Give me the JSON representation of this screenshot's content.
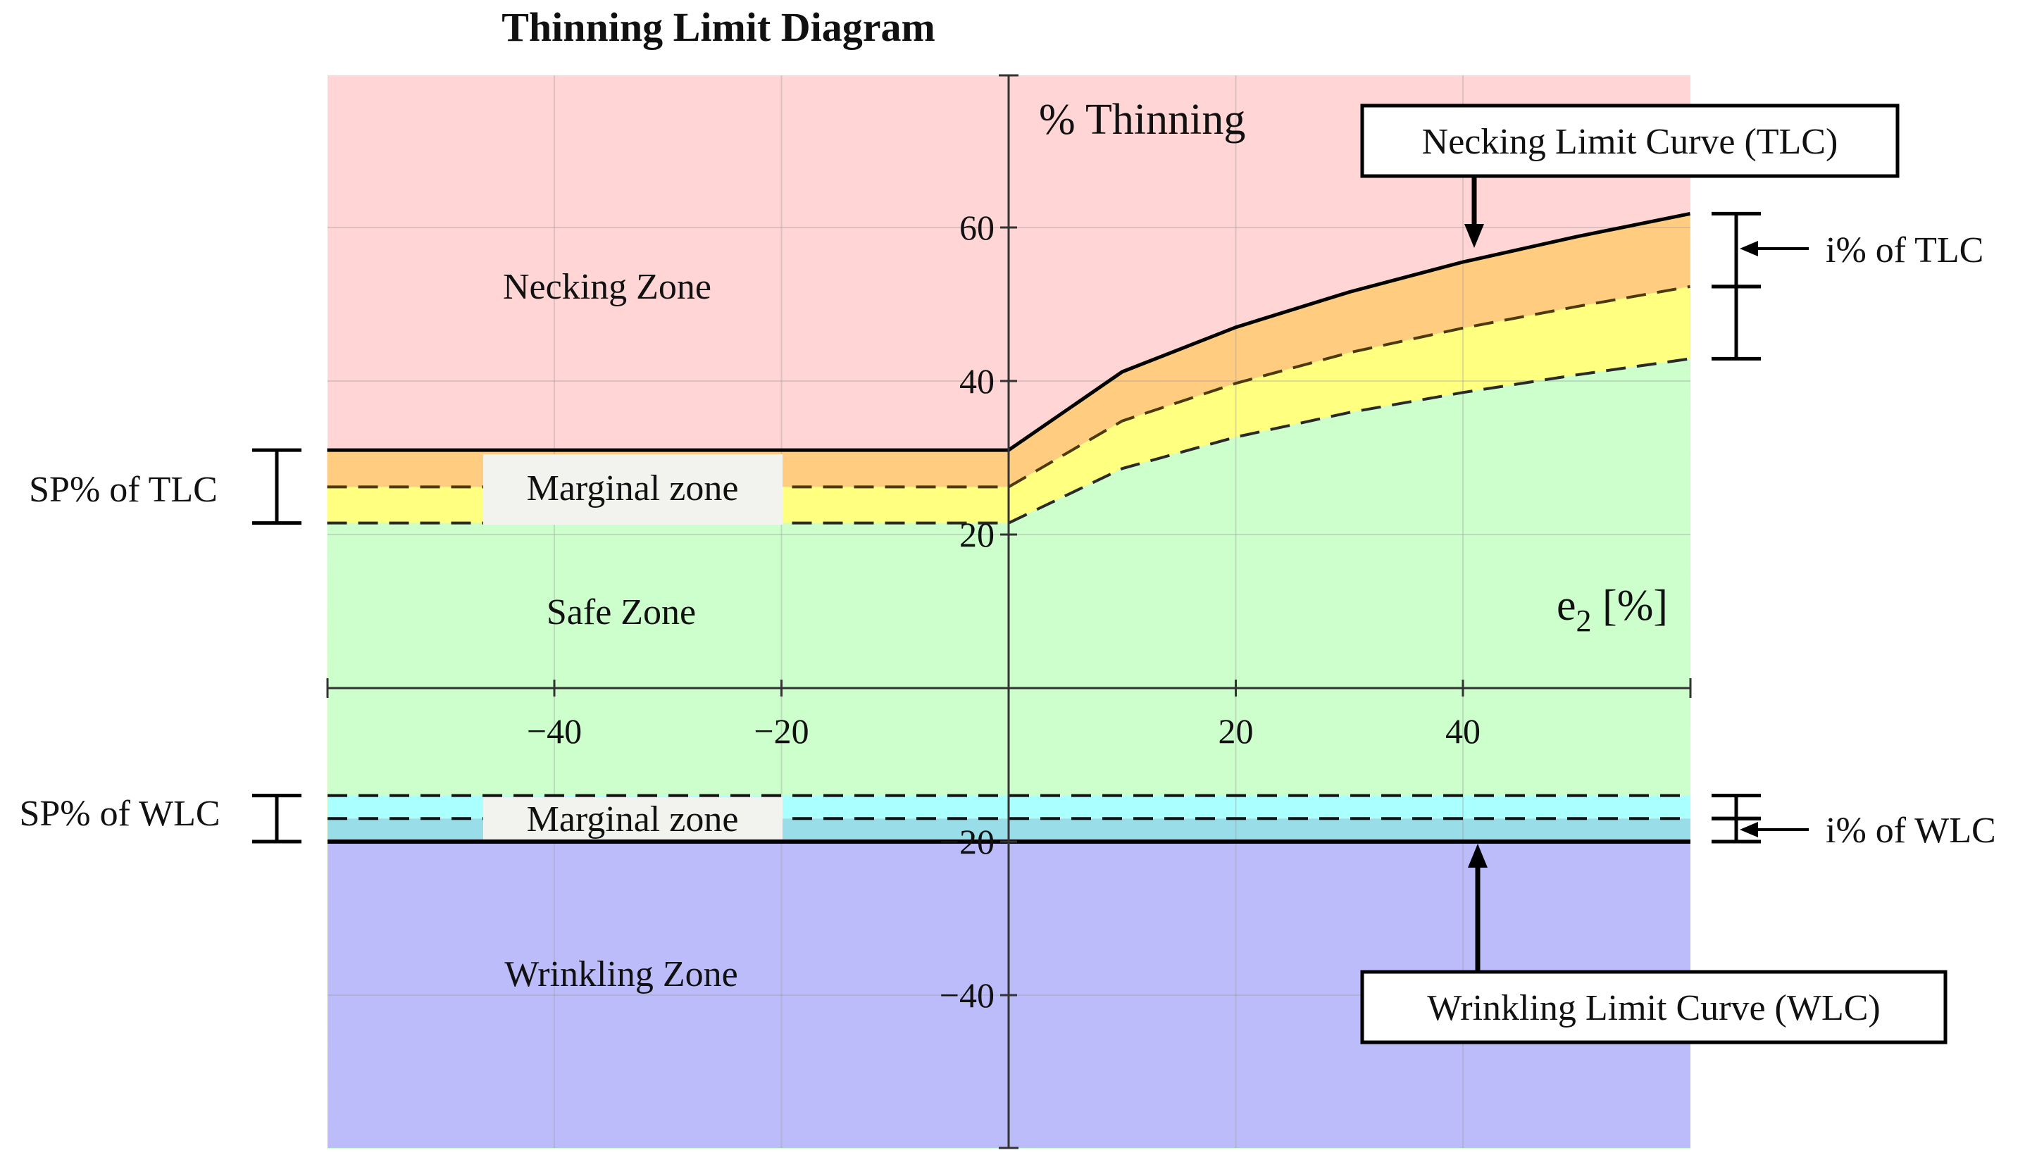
{
  "chart_data": {
    "type": "area",
    "title": "Thinning Limit Diagram",
    "xlabel": "e2 [%]",
    "ylabel": "% Thinning",
    "xlim": [
      -60,
      60
    ],
    "ylim": [
      -60,
      80
    ],
    "grid": true,
    "x_ticks": [
      -40,
      -20,
      20,
      40
    ],
    "y_ticks": [
      60,
      40,
      20,
      -20,
      -40
    ],
    "x_tick_labels": [
      "−40",
      "−20",
      "20",
      "40"
    ],
    "y_tick_labels": [
      "60",
      "40",
      "20",
      "−20",
      "−40"
    ],
    "curves": {
      "tlc": {
        "name": "Necking Limit Curve (TLC)",
        "x": [
          -60,
          0,
          10,
          20,
          30,
          40,
          50,
          60
        ],
        "y": [
          31.0,
          31.0,
          41.2,
          47.0,
          51.6,
          55.5,
          58.8,
          61.8
        ]
      },
      "tlc_inner": {
        "x": [
          -60,
          0,
          10,
          20,
          30,
          40,
          50,
          60
        ],
        "y": [
          26.2,
          26.2,
          34.8,
          39.7,
          43.7,
          46.9,
          49.7,
          52.3
        ]
      },
      "tlc_safe": {
        "x": [
          -60,
          0,
          10,
          20,
          30,
          40,
          50,
          60
        ],
        "y": [
          21.5,
          21.5,
          28.6,
          32.7,
          35.9,
          38.5,
          40.8,
          42.9
        ]
      },
      "wlc": {
        "name": "Wrinkling Limit Curve (WLC)",
        "x": [
          -60,
          60
        ],
        "y": [
          -20,
          -20
        ]
      },
      "wlc_inner": {
        "x": [
          -60,
          60
        ],
        "y": [
          -17,
          -17
        ]
      },
      "wlc_safe": {
        "x": [
          -60,
          60
        ],
        "y": [
          -14,
          -14
        ]
      }
    },
    "zones": [
      {
        "label": "Necking Zone",
        "color": "#ffd5d5"
      },
      {
        "label": "Marginal zone",
        "color": "#ffcc80"
      },
      {
        "label": "Safe Zone",
        "color": "#ccffcc"
      },
      {
        "label": "Marginal zone",
        "color": "#aaffff"
      },
      {
        "label": "Wrinkling Zone",
        "color": "#bcbcfa"
      }
    ],
    "annotations": {
      "sp_tlc": "SP% of TLC",
      "sp_wlc": "SP% of WLC",
      "i_tlc": "i% of TLC",
      "i_wlc": "i% of WLC"
    },
    "colors": {
      "necking": "#ffd5d5",
      "tlc_band_outer": "#ffcc80",
      "tlc_band_inner": "#ffff80",
      "safe": "#ccffcc",
      "wlc_band_inner": "#aaffff",
      "wlc_band_outer": "#99dde8",
      "wrinkling": "#bcbcfa"
    }
  }
}
